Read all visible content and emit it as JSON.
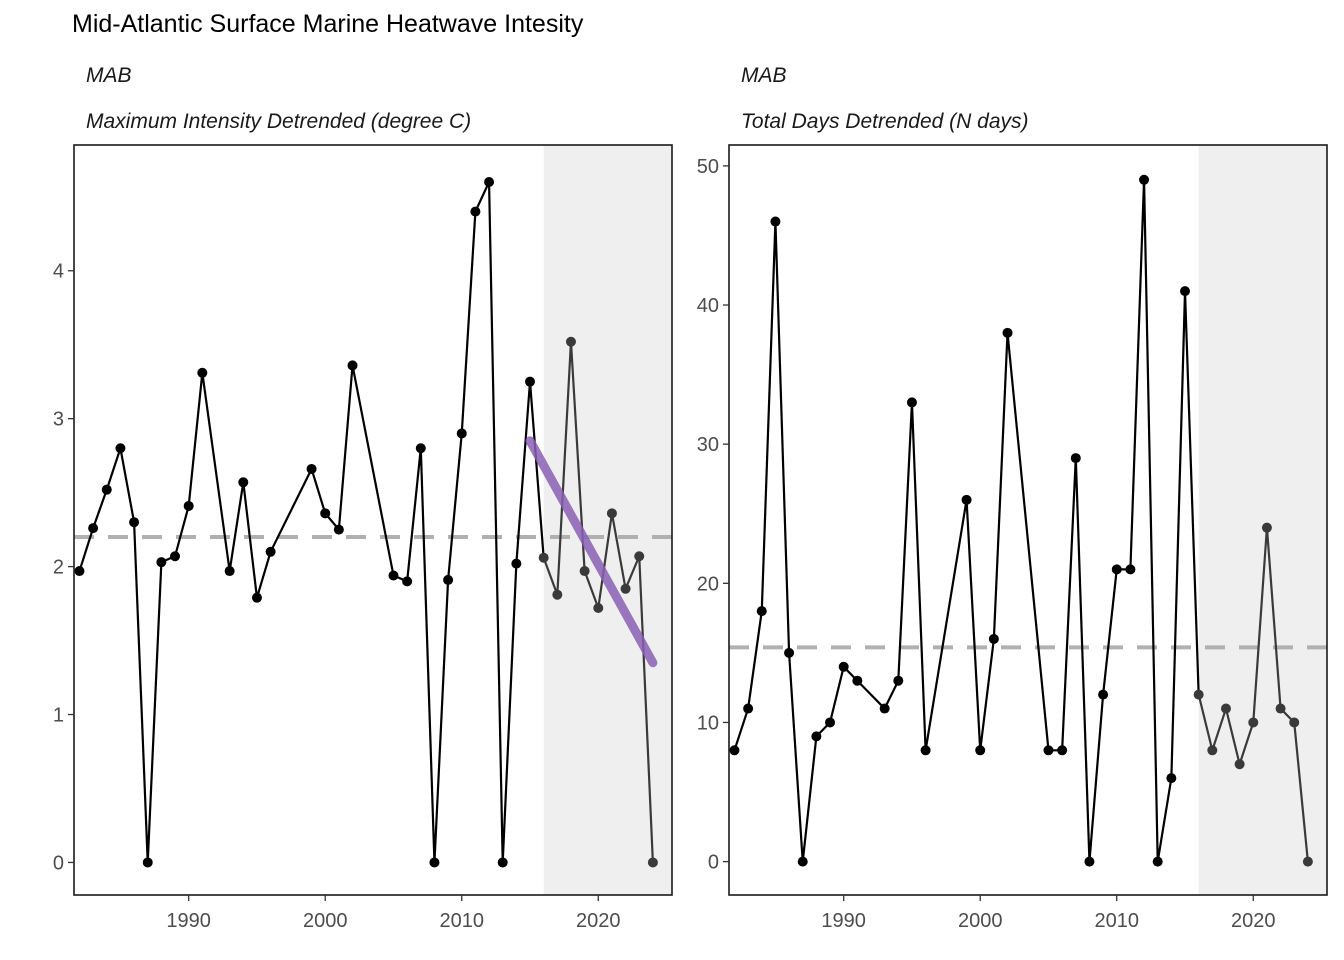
{
  "title": "Mid-Atlantic Surface Marine Heatwave Intesity",
  "colors": {
    "line": "#000000",
    "recent_line": "#3a3a3a",
    "shade": "#efefef",
    "mean_line": "#b0b0b0",
    "trend": "#8a5fb5",
    "axis_text": "#4d4d4d"
  },
  "chart_data": [
    {
      "type": "line",
      "region": "MAB",
      "subtitle": "Maximum Intensity Detrended (degree C)",
      "x": [
        1982,
        1983,
        1984,
        1985,
        1986,
        1987,
        1988,
        1989,
        1990,
        1991,
        1993,
        1994,
        1995,
        1996,
        1999,
        2000,
        2001,
        2002,
        2005,
        2006,
        2007,
        2008,
        2009,
        2010,
        2011,
        2012,
        2013,
        2014,
        2015,
        2016,
        2017,
        2018,
        2019,
        2020,
        2021,
        2022,
        2023,
        2024
      ],
      "y": [
        1.97,
        2.26,
        2.52,
        2.8,
        2.3,
        0.0,
        2.03,
        2.07,
        2.41,
        3.31,
        1.97,
        2.57,
        1.79,
        2.1,
        2.66,
        2.36,
        2.25,
        3.36,
        1.94,
        1.9,
        2.8,
        0.0,
        1.91,
        2.9,
        4.4,
        4.6,
        0.0,
        2.02,
        3.25,
        2.06,
        1.81,
        3.52,
        1.97,
        1.72,
        2.36,
        1.85,
        2.07,
        0.0
      ],
      "mean": 2.2,
      "trend": {
        "x": [
          2015,
          2024
        ],
        "y": [
          2.85,
          1.35
        ]
      },
      "shade_from": 2016,
      "xlim": [
        1981.6,
        2025.4
      ],
      "ylim": [
        -0.22,
        4.85
      ],
      "xticks": [
        1990,
        2000,
        2010,
        2020
      ],
      "yticks": [
        0,
        1,
        2,
        3,
        4
      ]
    },
    {
      "type": "line",
      "region": "MAB",
      "subtitle": "Total Days Detrended (N days)",
      "x": [
        1982,
        1983,
        1984,
        1985,
        1986,
        1987,
        1988,
        1989,
        1990,
        1991,
        1993,
        1994,
        1995,
        1996,
        1999,
        2000,
        2001,
        2002,
        2005,
        2006,
        2007,
        2008,
        2009,
        2010,
        2011,
        2012,
        2013,
        2014,
        2015,
        2016,
        2017,
        2018,
        2019,
        2020,
        2021,
        2022,
        2023,
        2024
      ],
      "y": [
        8,
        11,
        18,
        46,
        15,
        0,
        9,
        10,
        14,
        13,
        11,
        13,
        33,
        8,
        26,
        8,
        16,
        38,
        8,
        8,
        29,
        0,
        12,
        21,
        21,
        49,
        0,
        6,
        41,
        12,
        8,
        11,
        7,
        10,
        24,
        11,
        10,
        0
      ],
      "mean": 15.4,
      "shade_from": 2016,
      "xlim": [
        1981.6,
        2025.4
      ],
      "ylim": [
        -2.4,
        51.5
      ],
      "xticks": [
        1990,
        2000,
        2010,
        2020
      ],
      "yticks": [
        0,
        10,
        20,
        30,
        40,
        50
      ]
    }
  ]
}
